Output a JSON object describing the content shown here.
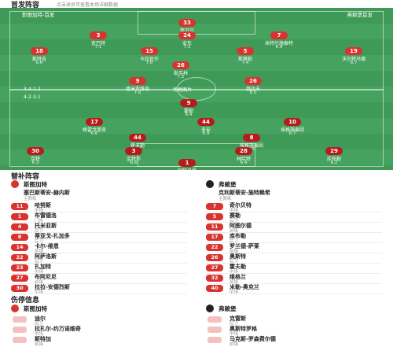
{
  "header": {
    "title": "首发阵容",
    "subtitle": "点击球员可查看本场详细数据"
  },
  "pitch": {
    "home_label": "斯图加特-首发",
    "away_label": "弗赖堡首发",
    "home_formation": "3-4-1-2",
    "away_formation": "4-2-3-1",
    "center": "场地图片"
  },
  "home_players": [
    {
      "number": "33",
      "name": "努贝尔",
      "rating": "6.8"
    },
    {
      "number": "3",
      "name": "查巴特",
      "rating": "7.1"
    },
    {
      "number": "24",
      "name": "安东",
      "rating": "7.3"
    },
    {
      "number": "7",
      "name": "米特尔施泰特",
      "rating": "6.9"
    },
    {
      "number": "18",
      "name": "斯特吉",
      "rating": "6.6"
    },
    {
      "number": "15",
      "name": "卡拉佐尔",
      "rating": "7.0"
    },
    {
      "number": "5",
      "name": "斯蒂勒",
      "rating": "7.4"
    },
    {
      "number": "19",
      "name": "沃尔特马德",
      "rating": "6.7"
    },
    {
      "number": "26",
      "name": "勒韦林",
      "rating": "7.2"
    },
    {
      "number": "9",
      "name": "德米罗维奇",
      "rating": "7.6"
    },
    {
      "number": "26",
      "name": "翁达夫",
      "rating": "6.5"
    }
  ],
  "away_players": [
    {
      "number": "9",
      "name": "霍勒",
      "rating": "6.4"
    },
    {
      "number": "17",
      "name": "格雷戈里奇",
      "rating": "6.6"
    },
    {
      "number": "44",
      "name": "多安",
      "rating": "6.9"
    },
    {
      "number": "10",
      "name": "埃格施泰因",
      "rating": "6.7"
    },
    {
      "number": "44",
      "name": "霍夫勒",
      "rating": "6.8"
    },
    {
      "number": "8",
      "name": "埃格施泰因",
      "rating": "6.5"
    },
    {
      "number": "30",
      "name": "京特",
      "rating": "6.3"
    },
    {
      "number": "3",
      "name": "金特尔",
      "rating": "6.6"
    },
    {
      "number": "28",
      "name": "林哈特",
      "rating": "6.4"
    },
    {
      "number": "29",
      "name": "库布勒",
      "rating": "6.2"
    },
    {
      "number": "1",
      "name": "阿特贝里",
      "rating": "6.9"
    }
  ],
  "subs": {
    "title": "替补阵容",
    "home": {
      "team": "斯图加特",
      "coach": "塞巴斯蒂安-赫内斯",
      "coach_role": "主教练",
      "players": [
        {
          "number": "11",
          "name": "哈努斯",
          "pos": "中场"
        },
        {
          "number": "1",
          "name": "布雷德洛",
          "pos": "门将"
        },
        {
          "number": "4",
          "name": "托米亚斯",
          "pos": "后卫"
        },
        {
          "number": "8",
          "name": "蒂亚戈-扎加多",
          "pos": "后卫"
        },
        {
          "number": "14",
          "name": "卡尔-维恩",
          "pos": "前锋"
        },
        {
          "number": "22",
          "name": "阿萨洛斯",
          "pos": "后卫"
        },
        {
          "number": "23",
          "name": "扎加特",
          "pos": "中场"
        },
        {
          "number": "27",
          "name": "布阿尼尼",
          "pos": "前锋"
        },
        {
          "number": "30",
          "name": "拉拉-安德烈斯",
          "pos": "中场"
        }
      ]
    },
    "away": {
      "team": "弗赖堡",
      "coach": "克利斯蒂安-施特赖希",
      "coach_role": "主教练",
      "players": [
        {
          "number": "7",
          "name": "奇尔贝特",
          "pos": "中场"
        },
        {
          "number": "5",
          "name": "赛勒",
          "pos": "后卫"
        },
        {
          "number": "11",
          "name": "阿图尔德",
          "pos": "前锋"
        },
        {
          "number": "17",
          "name": "库布勒",
          "pos": "后卫"
        },
        {
          "number": "22",
          "name": "罗兰德-萨莱",
          "pos": "前锋"
        },
        {
          "number": "26",
          "name": "奥斯特",
          "pos": "后卫"
        },
        {
          "number": "27",
          "name": "霍夫勒",
          "pos": "中场"
        },
        {
          "number": "32",
          "name": "维格兰",
          "pos": "前锋"
        },
        {
          "number": "40",
          "name": "米勒-奥克兰",
          "pos": "中场"
        }
      ]
    }
  },
  "injuries": {
    "title": "伤停信息",
    "home": {
      "team": "斯图加特",
      "players": [
        {
          "name": "迪尔",
          "pos": "后卫"
        },
        {
          "name": "拉扎尔-约万诺维奇",
          "pos": "中场"
        },
        {
          "name": "斯特加",
          "pos": "前锋"
        }
      ]
    },
    "away": {
      "team": "弗赖堡",
      "players": [
        {
          "name": "克雷斯",
          "pos": "后卫"
        },
        {
          "name": "奥斯特罗格",
          "pos": "中场"
        },
        {
          "name": "马克斯-罗森费尔德",
          "pos": "前锋"
        }
      ]
    }
  }
}
